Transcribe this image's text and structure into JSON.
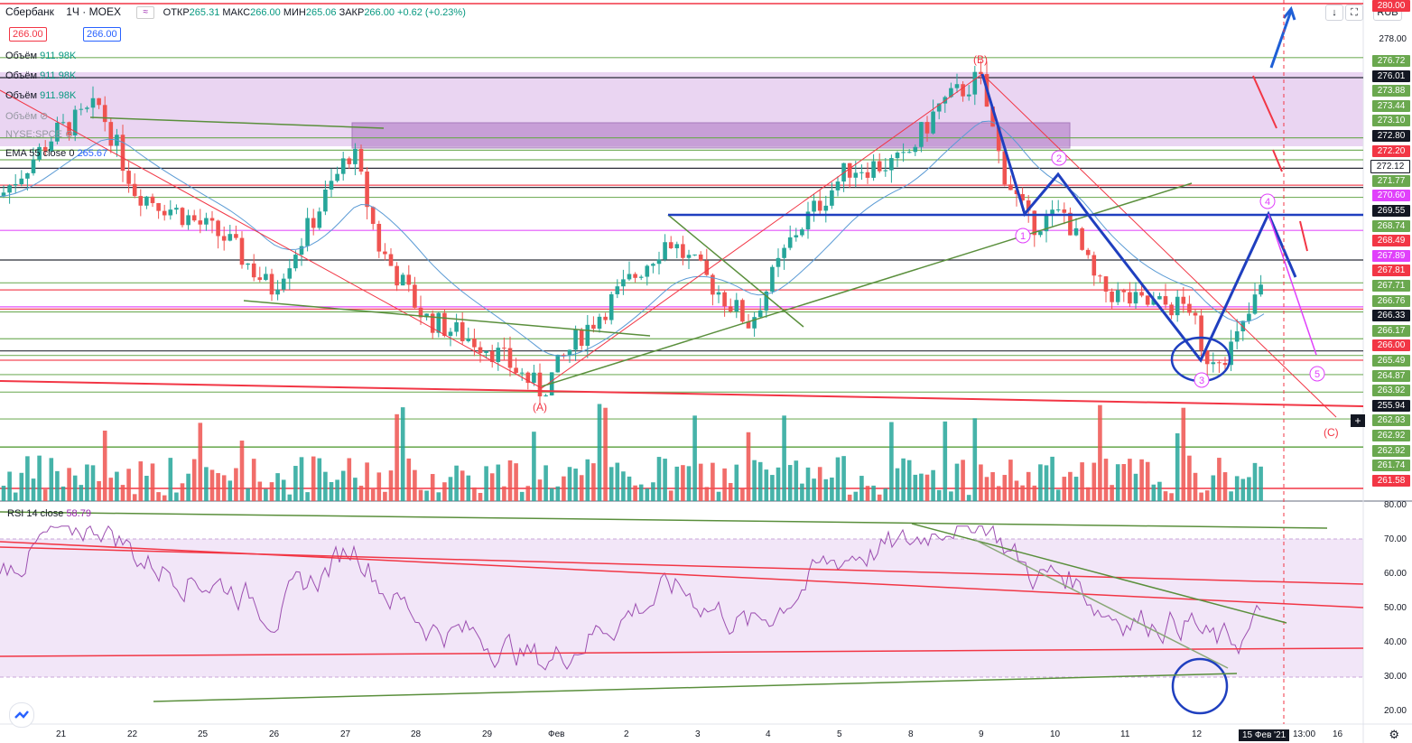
{
  "header": {
    "symbol": "Сбербанк",
    "interval": "1Ч",
    "exchange": "MOEX",
    "ohlc": {
      "open_label": "ОТКР",
      "open": "265.31",
      "high_label": "МАКС",
      "high": "266.00",
      "low_label": "МИН",
      "low": "265.06",
      "close_label": "ЗАКР",
      "close": "266.00",
      "change": "+0.62 (+0.23%)"
    },
    "sell_price": "266.00",
    "buy_price": "266.00"
  },
  "indicators": [
    {
      "name": "Объём",
      "value": "911.98K"
    },
    {
      "name": "Объём",
      "value": "911.98K"
    },
    {
      "name": "Объём",
      "value": "911.98K"
    },
    {
      "name": "Объём",
      "value": ""
    },
    {
      "name": "NYSE:SPCE",
      "value": ""
    },
    {
      "name": "EMA 55 close 0",
      "value": "265.67"
    }
  ],
  "rsi": {
    "name": "RSI 14 close",
    "value": "58.79"
  },
  "currency": "RUB",
  "price_axis": {
    "plain_ticks": [
      "278.00"
    ],
    "labels": [
      {
        "v": "276.72",
        "c": "#6aa84f"
      },
      {
        "v": "276.01",
        "c": "#131722"
      },
      {
        "v": "273.88",
        "c": "#6aa84f"
      },
      {
        "v": "273.44",
        "c": "#6aa84f"
      },
      {
        "v": "273.10",
        "c": "#6aa84f"
      },
      {
        "v": "272.80",
        "c": "#131722"
      },
      {
        "v": "272.20",
        "c": "#f23645"
      },
      {
        "v": "272.12",
        "c": "#ffffff"
      },
      {
        "v": "271.77",
        "c": "#6aa84f"
      },
      {
        "v": "270.60",
        "c": "#e040fb"
      },
      {
        "v": "269.55",
        "c": "#131722"
      },
      {
        "v": "268.74",
        "c": "#6aa84f"
      },
      {
        "v": "268.49",
        "c": "#f23645"
      },
      {
        "v": "267.89",
        "c": "#e040fb"
      },
      {
        "v": "267.81",
        "c": "#f23645"
      },
      {
        "v": "267.71",
        "c": "#6aa84f"
      },
      {
        "v": "266.76",
        "c": "#6aa84f"
      },
      {
        "v": "266.33",
        "c": "#131722"
      },
      {
        "v": "266.17",
        "c": "#6aa84f"
      },
      {
        "v": "266.00",
        "c": "#f23645"
      },
      {
        "v": "265.49",
        "c": "#6aa84f"
      },
      {
        "v": "264.87",
        "c": "#6aa84f"
      },
      {
        "v": "263.92",
        "c": "#6aa84f"
      },
      {
        "v": "255.94",
        "c": "#131722"
      },
      {
        "v": "262.93",
        "c": "#6aa84f"
      },
      {
        "v": "262.92",
        "c": "#6aa84f"
      },
      {
        "v": "262.92",
        "c": "#6aa84f"
      },
      {
        "v": "261.74",
        "c": "#6aa84f"
      },
      {
        "v": "261.58",
        "c": "#f23645"
      }
    ],
    "top_label": "280.00"
  },
  "rsi_axis": [
    "80.00",
    "70.00",
    "60.00",
    "50.00",
    "40.00",
    "30.00",
    "20.00"
  ],
  "time_axis": [
    "21",
    "22",
    "25",
    "26",
    "27",
    "28",
    "29",
    "Фев",
    "2",
    "3",
    "4",
    "5",
    "8",
    "9",
    "10",
    "11",
    "12",
    "16"
  ],
  "current_date_label": "15 Фев '21",
  "current_time_label": "13:00",
  "wave_labels": [
    "(A)",
    "(B)",
    "(C)"
  ],
  "wave_counts": [
    "1",
    "2",
    "3",
    "4",
    "5"
  ],
  "colors": {
    "up": "#26a69a",
    "down": "#ef5350",
    "ema": "#5b9bd5",
    "rsi": "#9c4fb0",
    "zone": "#d9b3e8",
    "wave_blue": "#1f3fbf",
    "red_line": "#f23645",
    "green_line": "#5a8f3c"
  }
}
